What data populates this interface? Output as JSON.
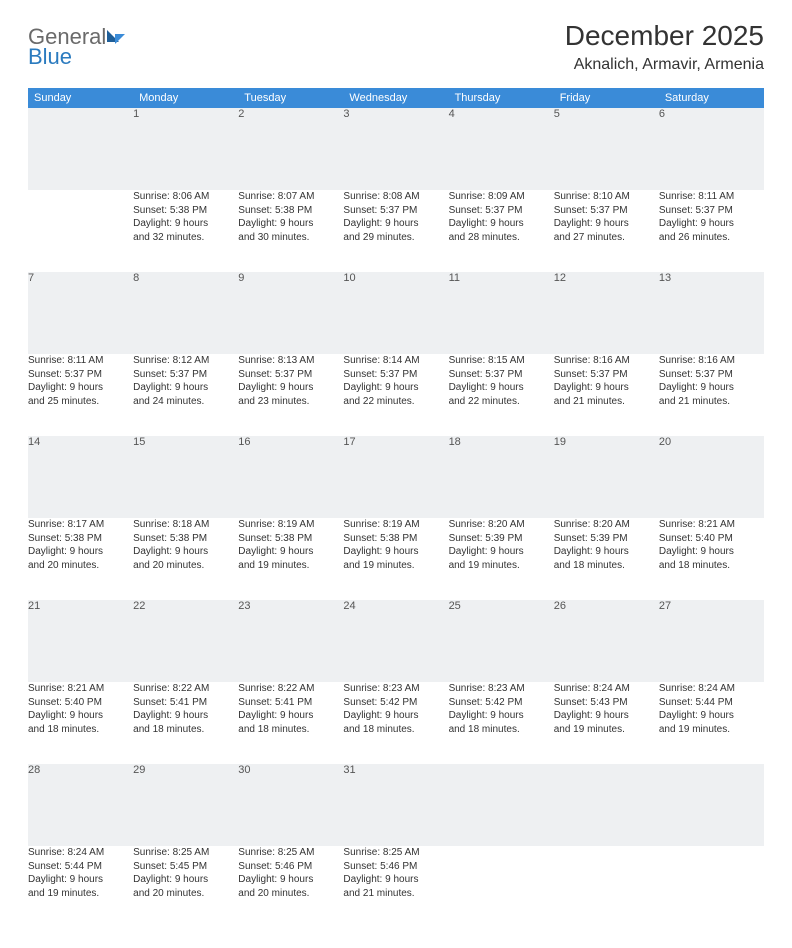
{
  "brand": {
    "part1": "General",
    "part2": "Blue"
  },
  "title": "December 2025",
  "location": "Aknalich, Armavir, Armenia",
  "colors": {
    "header_bg": "#3a8bd8",
    "header_text": "#ffffff",
    "daynum_bg": "#eef0f2",
    "row_divider": "#2b6aa3",
    "body_text": "#333333",
    "logo_gray": "#6a6a6a",
    "logo_blue": "#2b7bbf"
  },
  "typography": {
    "title_fontsize": 28,
    "location_fontsize": 16,
    "dayheader_fontsize": 11,
    "daynum_fontsize": 11,
    "detail_fontsize": 10
  },
  "day_headers": [
    "Sunday",
    "Monday",
    "Tuesday",
    "Wednesday",
    "Thursday",
    "Friday",
    "Saturday"
  ],
  "weeks": [
    [
      null,
      {
        "n": "1",
        "sr": "Sunrise: 8:06 AM",
        "ss": "Sunset: 5:38 PM",
        "d1": "Daylight: 9 hours",
        "d2": "and 32 minutes."
      },
      {
        "n": "2",
        "sr": "Sunrise: 8:07 AM",
        "ss": "Sunset: 5:38 PM",
        "d1": "Daylight: 9 hours",
        "d2": "and 30 minutes."
      },
      {
        "n": "3",
        "sr": "Sunrise: 8:08 AM",
        "ss": "Sunset: 5:37 PM",
        "d1": "Daylight: 9 hours",
        "d2": "and 29 minutes."
      },
      {
        "n": "4",
        "sr": "Sunrise: 8:09 AM",
        "ss": "Sunset: 5:37 PM",
        "d1": "Daylight: 9 hours",
        "d2": "and 28 minutes."
      },
      {
        "n": "5",
        "sr": "Sunrise: 8:10 AM",
        "ss": "Sunset: 5:37 PM",
        "d1": "Daylight: 9 hours",
        "d2": "and 27 minutes."
      },
      {
        "n": "6",
        "sr": "Sunrise: 8:11 AM",
        "ss": "Sunset: 5:37 PM",
        "d1": "Daylight: 9 hours",
        "d2": "and 26 minutes."
      }
    ],
    [
      {
        "n": "7",
        "sr": "Sunrise: 8:11 AM",
        "ss": "Sunset: 5:37 PM",
        "d1": "Daylight: 9 hours",
        "d2": "and 25 minutes."
      },
      {
        "n": "8",
        "sr": "Sunrise: 8:12 AM",
        "ss": "Sunset: 5:37 PM",
        "d1": "Daylight: 9 hours",
        "d2": "and 24 minutes."
      },
      {
        "n": "9",
        "sr": "Sunrise: 8:13 AM",
        "ss": "Sunset: 5:37 PM",
        "d1": "Daylight: 9 hours",
        "d2": "and 23 minutes."
      },
      {
        "n": "10",
        "sr": "Sunrise: 8:14 AM",
        "ss": "Sunset: 5:37 PM",
        "d1": "Daylight: 9 hours",
        "d2": "and 22 minutes."
      },
      {
        "n": "11",
        "sr": "Sunrise: 8:15 AM",
        "ss": "Sunset: 5:37 PM",
        "d1": "Daylight: 9 hours",
        "d2": "and 22 minutes."
      },
      {
        "n": "12",
        "sr": "Sunrise: 8:16 AM",
        "ss": "Sunset: 5:37 PM",
        "d1": "Daylight: 9 hours",
        "d2": "and 21 minutes."
      },
      {
        "n": "13",
        "sr": "Sunrise: 8:16 AM",
        "ss": "Sunset: 5:37 PM",
        "d1": "Daylight: 9 hours",
        "d2": "and 21 minutes."
      }
    ],
    [
      {
        "n": "14",
        "sr": "Sunrise: 8:17 AM",
        "ss": "Sunset: 5:38 PM",
        "d1": "Daylight: 9 hours",
        "d2": "and 20 minutes."
      },
      {
        "n": "15",
        "sr": "Sunrise: 8:18 AM",
        "ss": "Sunset: 5:38 PM",
        "d1": "Daylight: 9 hours",
        "d2": "and 20 minutes."
      },
      {
        "n": "16",
        "sr": "Sunrise: 8:19 AM",
        "ss": "Sunset: 5:38 PM",
        "d1": "Daylight: 9 hours",
        "d2": "and 19 minutes."
      },
      {
        "n": "17",
        "sr": "Sunrise: 8:19 AM",
        "ss": "Sunset: 5:38 PM",
        "d1": "Daylight: 9 hours",
        "d2": "and 19 minutes."
      },
      {
        "n": "18",
        "sr": "Sunrise: 8:20 AM",
        "ss": "Sunset: 5:39 PM",
        "d1": "Daylight: 9 hours",
        "d2": "and 19 minutes."
      },
      {
        "n": "19",
        "sr": "Sunrise: 8:20 AM",
        "ss": "Sunset: 5:39 PM",
        "d1": "Daylight: 9 hours",
        "d2": "and 18 minutes."
      },
      {
        "n": "20",
        "sr": "Sunrise: 8:21 AM",
        "ss": "Sunset: 5:40 PM",
        "d1": "Daylight: 9 hours",
        "d2": "and 18 minutes."
      }
    ],
    [
      {
        "n": "21",
        "sr": "Sunrise: 8:21 AM",
        "ss": "Sunset: 5:40 PM",
        "d1": "Daylight: 9 hours",
        "d2": "and 18 minutes."
      },
      {
        "n": "22",
        "sr": "Sunrise: 8:22 AM",
        "ss": "Sunset: 5:41 PM",
        "d1": "Daylight: 9 hours",
        "d2": "and 18 minutes."
      },
      {
        "n": "23",
        "sr": "Sunrise: 8:22 AM",
        "ss": "Sunset: 5:41 PM",
        "d1": "Daylight: 9 hours",
        "d2": "and 18 minutes."
      },
      {
        "n": "24",
        "sr": "Sunrise: 8:23 AM",
        "ss": "Sunset: 5:42 PM",
        "d1": "Daylight: 9 hours",
        "d2": "and 18 minutes."
      },
      {
        "n": "25",
        "sr": "Sunrise: 8:23 AM",
        "ss": "Sunset: 5:42 PM",
        "d1": "Daylight: 9 hours",
        "d2": "and 18 minutes."
      },
      {
        "n": "26",
        "sr": "Sunrise: 8:24 AM",
        "ss": "Sunset: 5:43 PM",
        "d1": "Daylight: 9 hours",
        "d2": "and 19 minutes."
      },
      {
        "n": "27",
        "sr": "Sunrise: 8:24 AM",
        "ss": "Sunset: 5:44 PM",
        "d1": "Daylight: 9 hours",
        "d2": "and 19 minutes."
      }
    ],
    [
      {
        "n": "28",
        "sr": "Sunrise: 8:24 AM",
        "ss": "Sunset: 5:44 PM",
        "d1": "Daylight: 9 hours",
        "d2": "and 19 minutes."
      },
      {
        "n": "29",
        "sr": "Sunrise: 8:25 AM",
        "ss": "Sunset: 5:45 PM",
        "d1": "Daylight: 9 hours",
        "d2": "and 20 minutes."
      },
      {
        "n": "30",
        "sr": "Sunrise: 8:25 AM",
        "ss": "Sunset: 5:46 PM",
        "d1": "Daylight: 9 hours",
        "d2": "and 20 minutes."
      },
      {
        "n": "31",
        "sr": "Sunrise: 8:25 AM",
        "ss": "Sunset: 5:46 PM",
        "d1": "Daylight: 9 hours",
        "d2": "and 21 minutes."
      },
      null,
      null,
      null
    ]
  ]
}
